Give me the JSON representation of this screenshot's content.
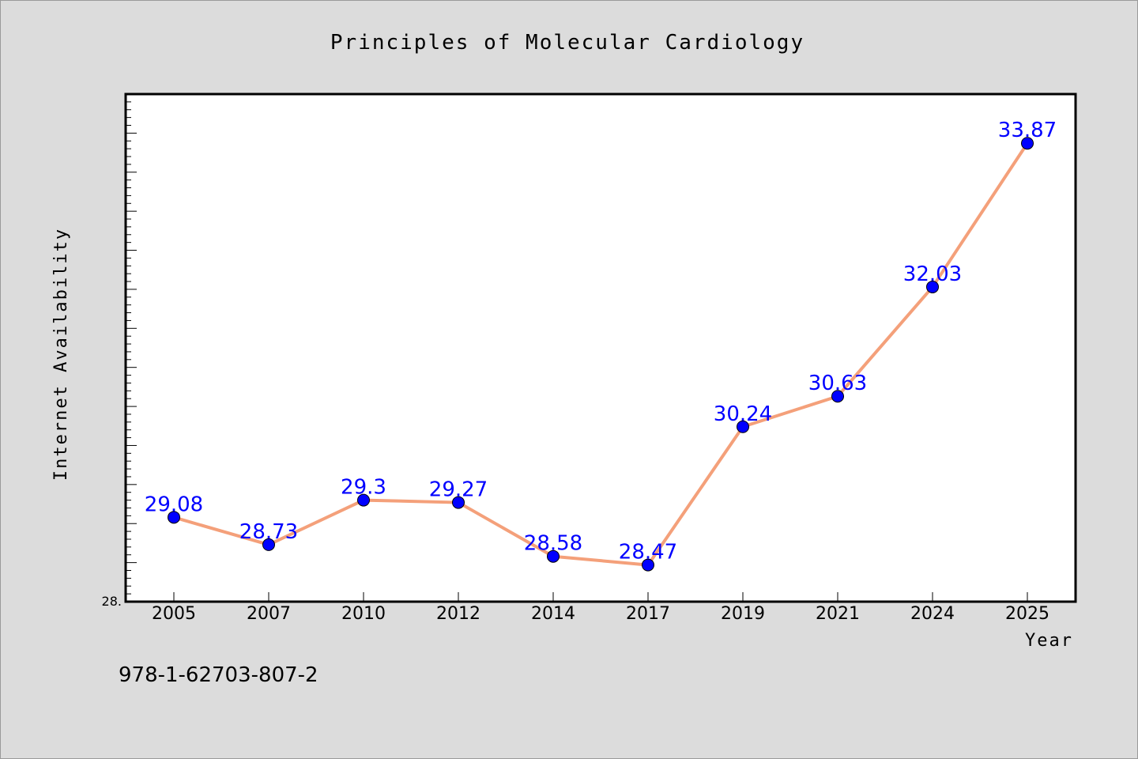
{
  "chart_data": {
    "type": "line",
    "title": "Principles of Molecular Cardiology",
    "xlabel": "Year",
    "ylabel": "Internet Availability",
    "categories": [
      "2005",
      "2007",
      "2010",
      "2012",
      "2014",
      "2017",
      "2019",
      "2021",
      "2024",
      "2025"
    ],
    "series": [
      {
        "values": [
          29.08,
          28.73,
          29.3,
          29.27,
          28.58,
          28.47,
          30.24,
          30.63,
          32.03,
          33.87
        ],
        "labels": [
          "29.08",
          "28.73",
          "29.3",
          "29.27",
          "28.58",
          "28.47",
          "30.24",
          "30.63",
          "32.03",
          "33.87"
        ]
      }
    ],
    "ylim": [
      28.0,
      34.5
    ],
    "y_tick_labels": [
      "28."
    ],
    "grid": false,
    "line_color": "#f4a07a",
    "marker_color": "#0000ff",
    "data_label_color": "#0000ff",
    "plot_background": "#ffffff",
    "page_background": "#dcdcdc"
  },
  "footer": {
    "isbn": "978-1-62703-807-2"
  }
}
